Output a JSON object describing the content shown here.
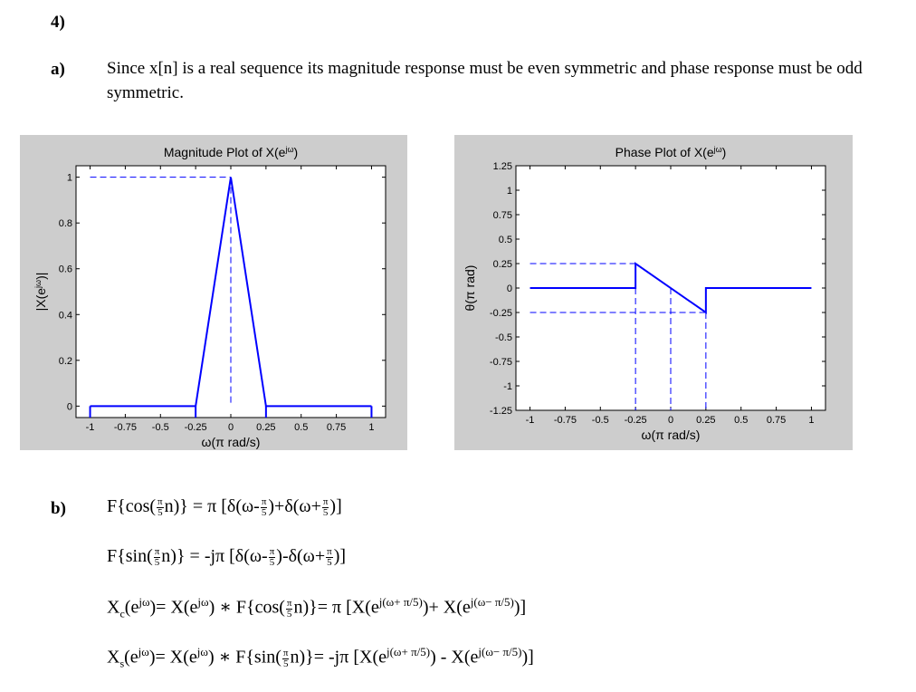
{
  "question_number": "4)",
  "part_a": {
    "label": "a)",
    "text": "Since x[n] is a real sequence its magnitude response must be even symmetric and phase response must be odd symmetric."
  },
  "chart_data": [
    {
      "type": "line",
      "title": "Magnitude Plot of X(e^jω)",
      "xlabel": "ω(π rad/s)",
      "ylabel": "|X(e^jω)|",
      "xlim": [
        -1.1,
        1.1
      ],
      "ylim": [
        -0.05,
        1.05
      ],
      "xticks": [
        "-1",
        "-0.75",
        "-0.5",
        "-0.25",
        "0",
        "0.25",
        "0.5",
        "0.75",
        "1"
      ],
      "yticks": [
        "0",
        "0.2",
        "0.4",
        "0.6",
        "0.8",
        "1"
      ],
      "series": [
        {
          "x": [
            -1,
            -0.25,
            0,
            0.25,
            1
          ],
          "y": [
            0,
            0,
            1,
            0,
            0
          ],
          "style": "solid",
          "color": "#0000ff"
        },
        {
          "x": [
            -1,
            0
          ],
          "y": [
            1,
            1
          ],
          "style": "dashed",
          "color": "#0000ff"
        },
        {
          "x": [
            0,
            0
          ],
          "y": [
            1,
            0
          ],
          "style": "dashed",
          "color": "#0000ff"
        },
        {
          "x": [
            -1,
            -1
          ],
          "y": [
            0,
            -0.05
          ],
          "style": "solid",
          "color": "#0000ff"
        },
        {
          "x": [
            -0.25,
            -0.25
          ],
          "y": [
            0,
            -0.05
          ],
          "style": "solid",
          "color": "#0000ff"
        },
        {
          "x": [
            0.25,
            0.25
          ],
          "y": [
            0,
            -0.05
          ],
          "style": "solid",
          "color": "#0000ff"
        },
        {
          "x": [
            1,
            1
          ],
          "y": [
            0,
            -0.05
          ],
          "style": "solid",
          "color": "#0000ff"
        }
      ]
    },
    {
      "type": "line",
      "title": "Phase Plot of X(e^jω)",
      "xlabel": "ω(π rad/s)",
      "ylabel": "θ(π rad)",
      "xlim": [
        -1.1,
        1.1
      ],
      "ylim": [
        -1.25,
        1.25
      ],
      "xticks": [
        "-1",
        "-0.75",
        "-0.5",
        "-0.25",
        "0",
        "0.25",
        "0.5",
        "0.75",
        "1"
      ],
      "yticks": [
        "-1.25",
        "-1",
        "-0.75",
        "-0.5",
        "-0.25",
        "0",
        "0.25",
        "0.5",
        "0.75",
        "1",
        "1.25"
      ],
      "series": [
        {
          "x": [
            -1,
            -0.25,
            -0.25,
            0.25,
            0.25,
            1
          ],
          "y": [
            0,
            0,
            0.25,
            -0.25,
            0,
            0
          ],
          "style": "solid",
          "color": "#0000ff"
        },
        {
          "x": [
            -1,
            -0.25
          ],
          "y": [
            0.25,
            0.25
          ],
          "style": "dashed",
          "color": "#0000ff"
        },
        {
          "x": [
            -1,
            0.25
          ],
          "y": [
            -0.25,
            -0.25
          ],
          "style": "dashed",
          "color": "#0000ff"
        },
        {
          "x": [
            -0.25,
            -0.25
          ],
          "y": [
            0,
            -1.25
          ],
          "style": "dashed",
          "color": "#0000ff"
        },
        {
          "x": [
            0,
            0
          ],
          "y": [
            0,
            -1.25
          ],
          "style": "dashed",
          "color": "#0000ff"
        },
        {
          "x": [
            0.25,
            0.25
          ],
          "y": [
            -0.25,
            -1.25
          ],
          "style": "dashed",
          "color": "#0000ff"
        }
      ]
    }
  ],
  "part_b": {
    "label": "b)",
    "eq1": {
      "pre": "F{cos(",
      "n_close": "n)} = π [δ(ω-",
      "mid": ")+δ(ω+",
      "end": ")]"
    },
    "eq2": {
      "pre": "F{sin(",
      "n_close": "n)} = -jπ [δ(ω-",
      "mid": ")-δ(ω+",
      "end": ")]"
    },
    "eq3": {
      "lhs": "X",
      "lhs_sub": "c",
      "lhs_exp_open": "(e",
      "jw": "jω",
      "after_lhs": ")= X(e",
      "star": ") ∗ F{cos(",
      "mid": "n)}= π [X(e",
      "exp_plus": "j(ω+ π/5)",
      "plus": ")+ X(e",
      "exp_minus": "j(ω− π/5)",
      "end": ")]"
    },
    "eq4": {
      "lhs": "X",
      "lhs_sub": "s",
      "lhs_exp_open": "(e",
      "jw": "jω",
      "after_lhs": ")= X(e",
      "star": ") ∗ F{sin(",
      "mid": "n)}= -jπ [X(e",
      "exp_plus": "j(ω+ π/5)",
      "minus": ") - X(e",
      "exp_minus": "j(ω− π/5)",
      "end": ")]"
    },
    "frac_num": "π",
    "frac_den": "5"
  }
}
